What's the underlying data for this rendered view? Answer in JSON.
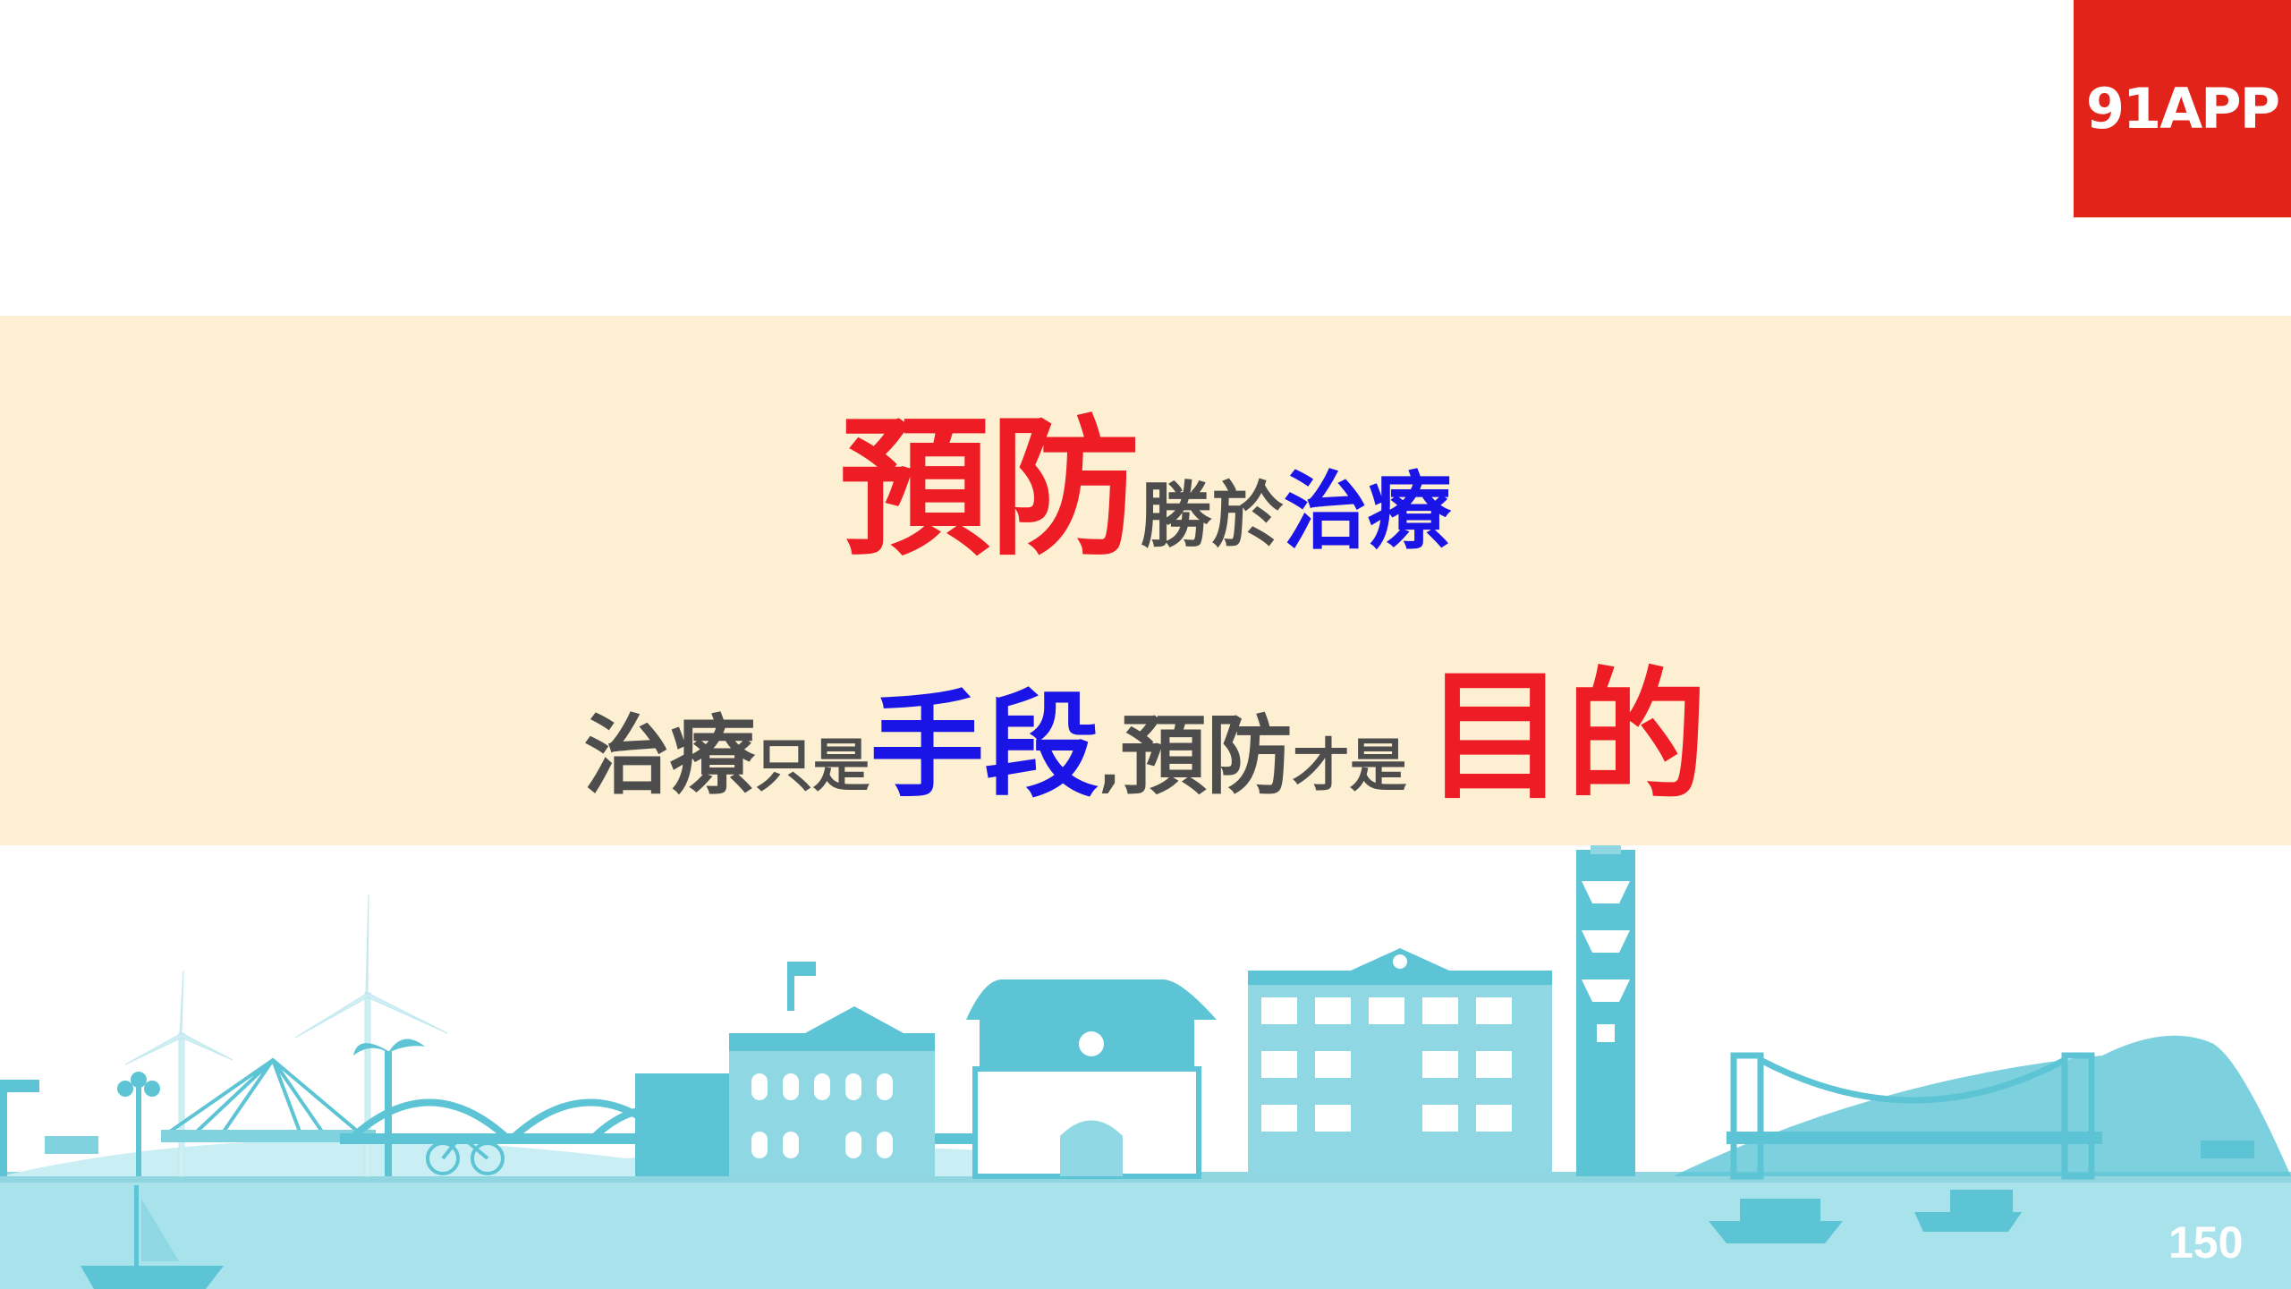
{
  "brand": {
    "logo_text": "91APP",
    "color": "#e2231a"
  },
  "banner": {
    "background": "#fdf0d2"
  },
  "headline": {
    "part1": "預防",
    "part2": "勝於",
    "part3": "治療"
  },
  "subline": {
    "part1": "治療",
    "part2": "只是",
    "part3": "手段",
    "part4": ",",
    "part5": "預防",
    "part6": "才是",
    "part7": "目的"
  },
  "page_number": "150",
  "colors": {
    "red": "#ee1c25",
    "blue": "#1a14e6",
    "grey": "#4d4d4d",
    "skyline": "#5cc4d4",
    "water": "#a8e2ea"
  }
}
